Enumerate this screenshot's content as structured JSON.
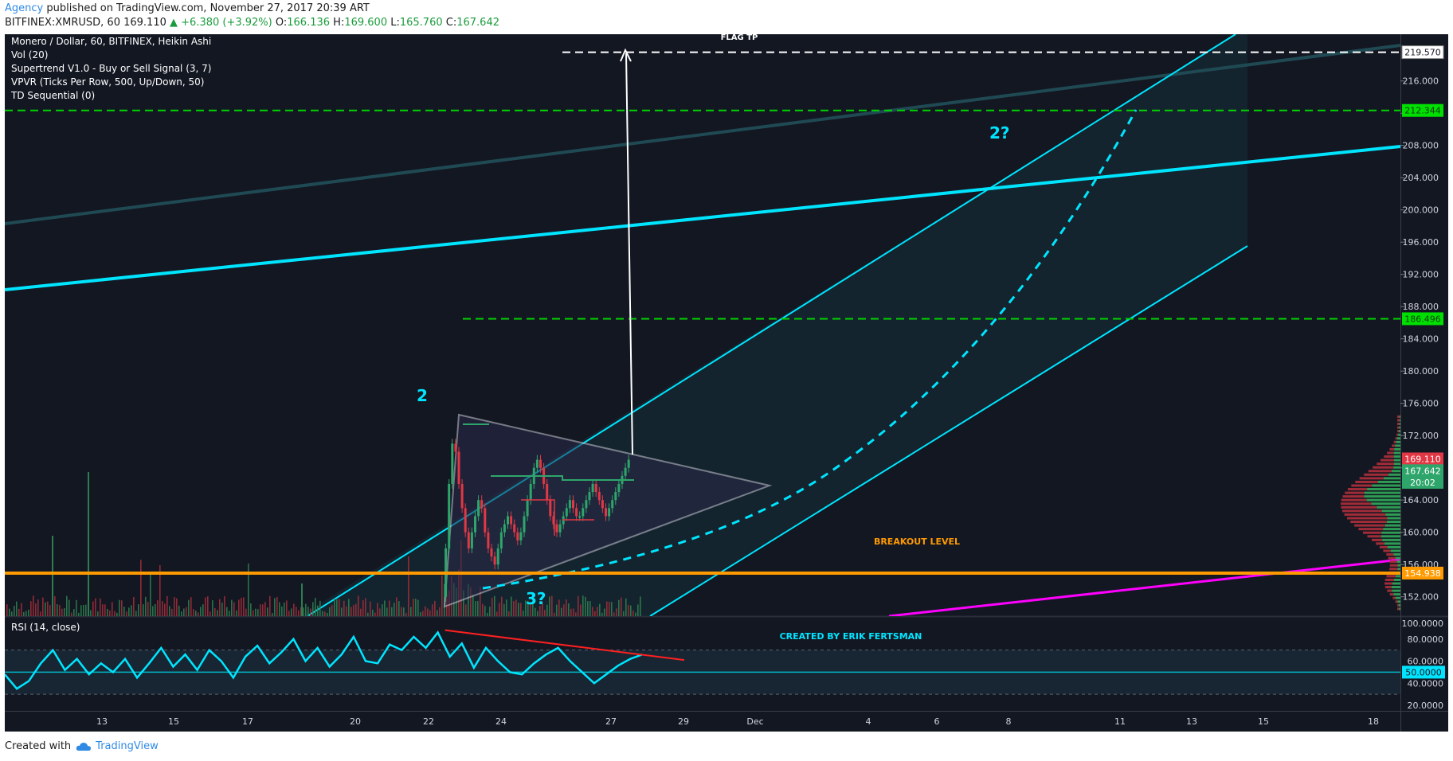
{
  "header": {
    "publisher": "Agency",
    "published_text": "published on TradingView.com, November 27, 2017 20:39 ART",
    "symbol_line": "BITFINEX:XMRUSD, 60",
    "last": "169.110",
    "change_arrow": "▲",
    "change": "+6.380 (+3.92%)",
    "o_label": "O:",
    "o": "166.136",
    "h_label": "H:",
    "h": "169.600",
    "l_label": "L:",
    "l": "165.760",
    "c_label": "C:",
    "c": "167.642"
  },
  "legend": [
    "Monero / Dollar, 60, BITFINEX, Heikin Ashi",
    "Vol (20)",
    "Supertrend V1.0 - Buy or Sell Signal (3, 7)",
    "VPVR (Ticks Per Row, 500, Up/Down, 50)",
    "TD Sequential (0)"
  ],
  "annotations": {
    "flag_tp": "FLAG TP",
    "breakout": "BREAKOUT LEVEL",
    "wave2": "2",
    "wave2q": "2?",
    "wave3q": "3?",
    "credit": "CREATED BY ERIK FERTSMAN"
  },
  "chart_data": [
    {
      "type": "line",
      "pane": "price",
      "style": "heikin-ashi",
      "y_ticks": [
        152,
        156,
        160,
        164,
        168,
        172,
        176,
        180,
        184,
        188,
        192,
        196,
        200,
        204,
        208,
        212,
        216
      ],
      "y_tick_labels": [
        "152.000",
        "156.000",
        "160.000",
        "164.000",
        "168.000",
        "172.000",
        "176.000",
        "180.000",
        "184.000",
        "188.000",
        "192.000",
        "196.000",
        "200.000",
        "204.000",
        "208.000",
        "212.000",
        "216.000"
      ],
      "ylim": [
        149.6,
        221.8
      ],
      "price_labels": [
        {
          "text": "219.570",
          "value": 219.57,
          "color": "#ffffff"
        },
        {
          "text": "212.344",
          "value": 212.344,
          "color": "#00e000"
        },
        {
          "text": "186.496",
          "value": 186.496,
          "color": "#00e000"
        },
        {
          "text": "169.110",
          "value": 169.11,
          "color": "#e23744"
        },
        {
          "text": "167.642",
          "value": 167.642,
          "color": "#2ea66b"
        },
        {
          "text": "20:02",
          "value": 166.2,
          "color": "#2ea66b"
        },
        {
          "text": "154.938",
          "value": 154.938,
          "color": "#ff9a00"
        }
      ],
      "levels": [
        {
          "name": "flag-tp",
          "value": 219.57,
          "color": "#ffffff"
        },
        {
          "name": "target-1",
          "value": 212.344,
          "color": "#00d400"
        },
        {
          "name": "target-2",
          "value": 186.496,
          "color": "#00d400"
        },
        {
          "name": "breakout",
          "value": 154.938,
          "color": "#ff9a00"
        }
      ],
      "colors": {
        "up": "#2ea66b",
        "down": "#e23744",
        "cyan": "#00e5ff",
        "magenta": "#ff00ff"
      }
    },
    {
      "type": "line",
      "pane": "rsi",
      "title": "RSI (14, close)",
      "y_ticks": [
        20,
        40,
        60,
        80,
        100
      ],
      "y_tick_labels": [
        "20.0000",
        "40.0000",
        "60.0000",
        "80.0000",
        "100.0000"
      ],
      "current_label": "50.0000",
      "current": 50,
      "ylim": [
        15,
        100
      ],
      "bands": [
        30,
        70
      ],
      "rsi_points": [
        [
          0,
          48
        ],
        [
          0.5,
          35
        ],
        [
          1,
          42
        ],
        [
          1.5,
          58
        ],
        [
          2,
          70
        ],
        [
          2.5,
          52
        ],
        [
          3,
          62
        ],
        [
          3.5,
          48
        ],
        [
          4,
          58
        ],
        [
          4.5,
          50
        ],
        [
          5,
          62
        ],
        [
          5.5,
          45
        ],
        [
          6,
          58
        ],
        [
          6.5,
          72
        ],
        [
          7,
          55
        ],
        [
          7.5,
          66
        ],
        [
          8,
          52
        ],
        [
          8.5,
          70
        ],
        [
          9,
          60
        ],
        [
          9.5,
          45
        ],
        [
          10,
          64
        ],
        [
          10.5,
          74
        ],
        [
          11,
          58
        ],
        [
          11.5,
          68
        ],
        [
          12,
          80
        ],
        [
          12.5,
          60
        ],
        [
          13,
          72
        ],
        [
          13.5,
          55
        ],
        [
          14,
          66
        ],
        [
          14.5,
          82
        ],
        [
          15,
          60
        ],
        [
          15.5,
          58
        ],
        [
          16,
          75
        ],
        [
          16.5,
          70
        ],
        [
          17,
          82
        ],
        [
          17.5,
          72
        ],
        [
          18,
          86
        ],
        [
          18.5,
          64
        ],
        [
          19,
          76
        ],
        [
          19.5,
          54
        ],
        [
          20,
          72
        ],
        [
          20.5,
          60
        ],
        [
          21,
          50
        ],
        [
          21.5,
          48
        ],
        [
          22,
          58
        ],
        [
          22.5,
          66
        ],
        [
          23,
          72
        ],
        [
          23.5,
          60
        ],
        [
          24,
          50
        ],
        [
          24.5,
          40
        ],
        [
          25,
          48
        ],
        [
          25.5,
          56
        ],
        [
          26,
          62
        ],
        [
          26.5,
          66
        ]
      ],
      "divergence": [
        [
          18.3,
          88
        ],
        [
          29.0,
          62
        ]
      ],
      "x_ticks": [
        "13",
        "15",
        "17",
        "20",
        "22",
        "24",
        "27",
        "29",
        "Dec",
        "4",
        "6",
        "8",
        "11",
        "13",
        "15",
        "18"
      ]
    }
  ],
  "footer": {
    "created_with": "Created with",
    "brand": "TradingView"
  }
}
